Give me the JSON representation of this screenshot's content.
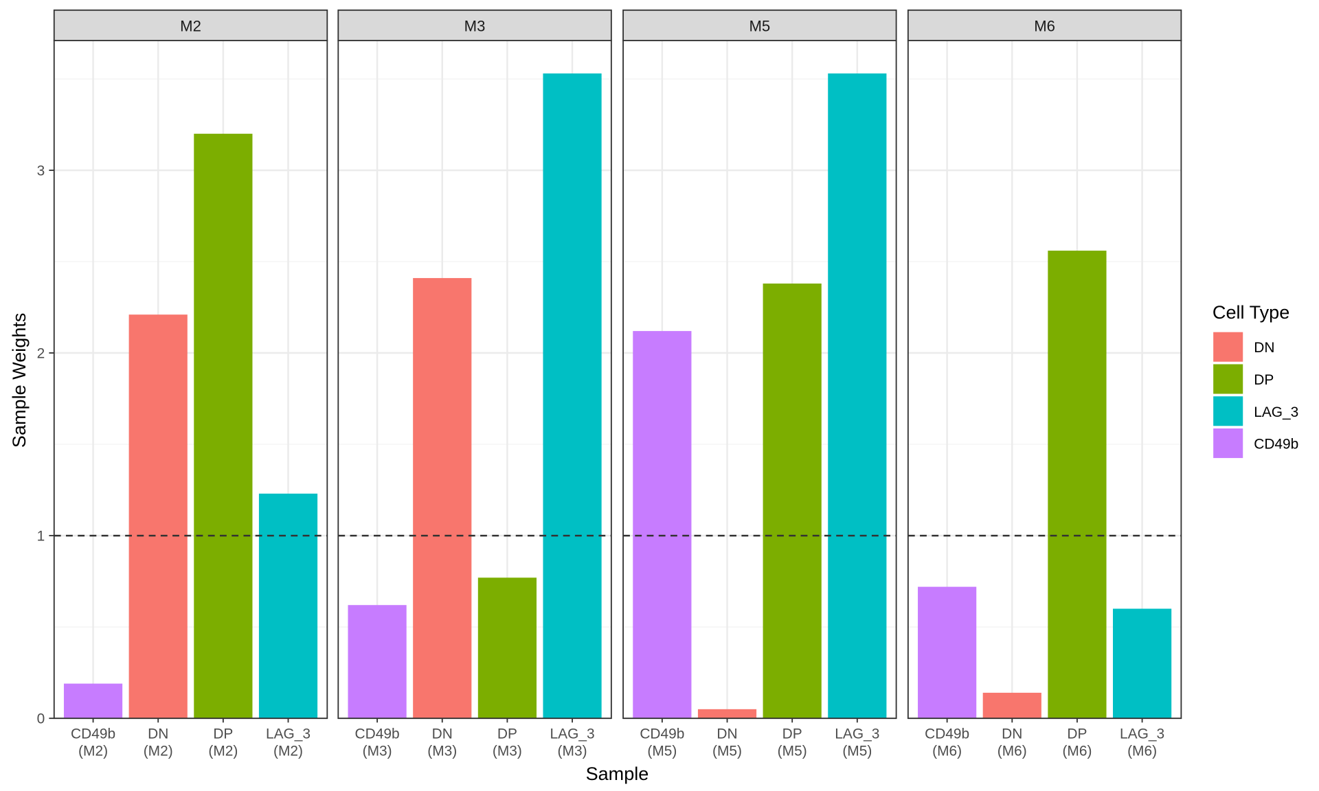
{
  "chart_data": {
    "type": "bar",
    "facets": [
      "M2",
      "M3",
      "M5",
      "M6"
    ],
    "categories": [
      "CD49b",
      "DN",
      "DP",
      "LAG_3"
    ],
    "tick_labels": {
      "M2": [
        "CD49b\n(M2)",
        "DN\n(M2)",
        "DP\n(M2)",
        "LAG_3\n(M2)"
      ],
      "M3": [
        "CD49b\n(M3)",
        "DN\n(M3)",
        "DP\n(M3)",
        "LAG_3\n(M3)"
      ],
      "M5": [
        "CD49b\n(M5)",
        "DN\n(M5)",
        "DP\n(M5)",
        "LAG_3\n(M5)"
      ],
      "M6": [
        "CD49b\n(M6)",
        "DN\n(M6)",
        "DP\n(M6)",
        "LAG_3\n(M6)"
      ]
    },
    "values": {
      "M2": [
        0.19,
        2.21,
        3.2,
        1.23
      ],
      "M3": [
        0.62,
        2.41,
        0.77,
        3.53
      ],
      "M5": [
        2.12,
        0.05,
        2.38,
        3.53
      ],
      "M6": [
        0.72,
        0.14,
        2.56,
        0.6
      ]
    },
    "xlabel": "Sample",
    "ylabel": "Sample Weights",
    "ylim": [
      0,
      3.71
    ],
    "yticks": [
      0,
      1,
      2,
      3
    ],
    "reference_line": {
      "y": 1,
      "style": "dashed"
    },
    "grid": true,
    "legend": {
      "title": "Cell Type",
      "placement": "right",
      "entries": [
        "DN",
        "DP",
        "LAG_3",
        "CD49b"
      ]
    },
    "colors": {
      "DN": "#F8766D",
      "DP": "#7CAE00",
      "LAG_3": "#00BFC4",
      "CD49b": "#C77CFF"
    }
  }
}
